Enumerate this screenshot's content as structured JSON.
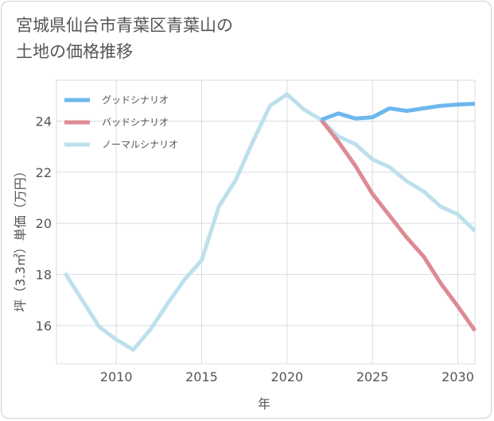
{
  "page": {
    "title_line1": "宮城県仙台市青葉区青葉山の",
    "title_line2": "土地の価格推移"
  },
  "chart_data": {
    "type": "line",
    "title": "宮城県仙台市青葉区青葉山の土地の価格推移",
    "xlabel": "年",
    "ylabel": "坪（3.3㎡）単価（万円）",
    "xlim": [
      2006.5,
      2031
    ],
    "ylim": [
      14.5,
      25.6
    ],
    "x_ticks": [
      2010,
      2015,
      2020,
      2025,
      2030
    ],
    "y_ticks": [
      16,
      18,
      20,
      22,
      24
    ],
    "grid": true,
    "legend_position": "top-left",
    "series": [
      {
        "name": "グッドシナリオ",
        "color": "#6cb7ec",
        "x": [
          2022,
          2023,
          2024,
          2025,
          2026,
          2027,
          2028,
          2029,
          2030,
          2031
        ],
        "y": [
          24.05,
          24.3,
          24.1,
          24.15,
          24.5,
          24.4,
          24.5,
          24.6,
          24.65,
          24.68
        ]
      },
      {
        "name": "バッドシナリオ",
        "color": "#dd8b93",
        "x": [
          2022,
          2023,
          2024,
          2025,
          2026,
          2027,
          2028,
          2029,
          2030,
          2031
        ],
        "y": [
          24.05,
          23.2,
          22.25,
          21.15,
          20.3,
          19.45,
          18.7,
          17.65,
          16.75,
          15.8
        ]
      },
      {
        "name": "ノーマルシナリオ",
        "color": "#bde0ec",
        "x": [
          2007,
          2008,
          2009,
          2010,
          2011,
          2012,
          2013,
          2014,
          2015,
          2016,
          2017,
          2018,
          2019,
          2020,
          2021,
          2022,
          2023,
          2024,
          2025,
          2026,
          2027,
          2028,
          2029,
          2030,
          2031
        ],
        "y": [
          18.05,
          17.0,
          15.95,
          15.45,
          15.05,
          15.85,
          16.85,
          17.8,
          18.55,
          20.65,
          21.7,
          23.2,
          24.6,
          25.05,
          24.45,
          24.05,
          23.4,
          23.1,
          22.5,
          22.2,
          21.65,
          21.25,
          20.65,
          20.35,
          19.7
        ]
      }
    ]
  }
}
